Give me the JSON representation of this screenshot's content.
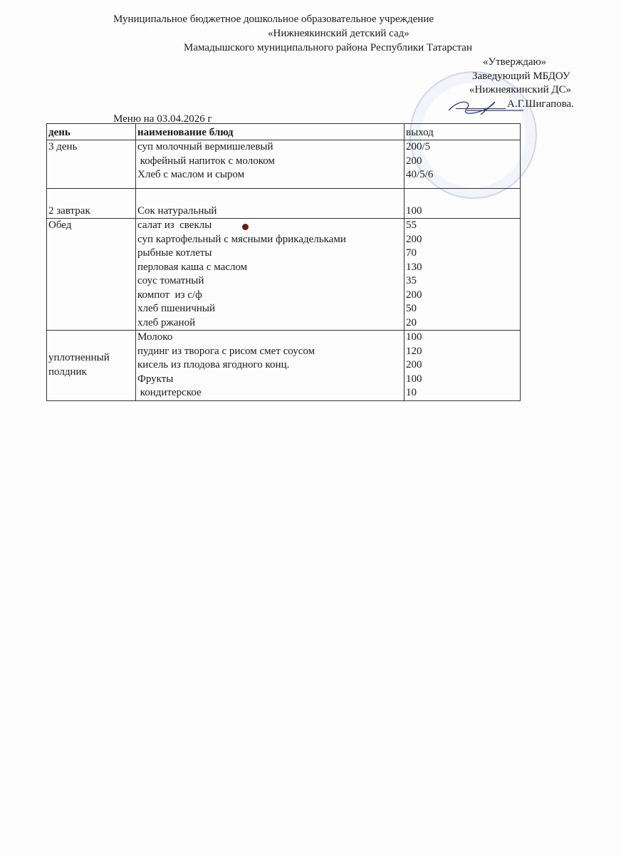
{
  "header": {
    "org_line1": "Муниципальное бюджетное дошкольное образовательное  учреждение",
    "org_line2": "«Нижнеякинский детский сад»",
    "org_line3": "Мамадышского муниципального района Республики Татарстан"
  },
  "approval": {
    "line1": "«Утверждаю»",
    "line2": "Заведующий МБДОУ",
    "line3": "«Нижнеякинский ДС»",
    "line4": "А.Г.Шигапова."
  },
  "menu_title": "Меню на 03.04.2026 г",
  "table": {
    "columns": [
      "день",
      "наименование блюд",
      "выход"
    ],
    "rows": [
      {
        "day": "3 день",
        "dishes": [
          "суп молочный вермишелевый",
          " кофейный напиток с молоком",
          "Хлеб с маслом и сыром"
        ],
        "yields": [
          "200/5",
          "200",
          "40/5/6"
        ]
      },
      {
        "day": " 2 завтрак",
        "dishes": [
          "Сок натуральный"
        ],
        "yields": [
          "100"
        ]
      },
      {
        "day": "Обед",
        "dishes": [
          "салат из  свеклы",
          "суп картофельный с мясными фрикадельками",
          "рыбные котлеты",
          "перловая каша с маслом",
          "соус томатный",
          "компот  из с/ф",
          "хлеб пшеничный",
          "хлеб ржаной"
        ],
        "yields": [
          "55",
          "200",
          "70",
          "130",
          "35",
          "200",
          "50",
          "20"
        ]
      },
      {
        "day": "уплотненный полдник",
        "dishes": [
          "Молоко",
          "пудинг из творога с рисом смет соусом",
          "кисель из плодова ягодного конц.",
          "Фрукты",
          " кондитерское"
        ],
        "yields": [
          "100",
          "120",
          "200",
          "100",
          "10"
        ]
      }
    ]
  }
}
